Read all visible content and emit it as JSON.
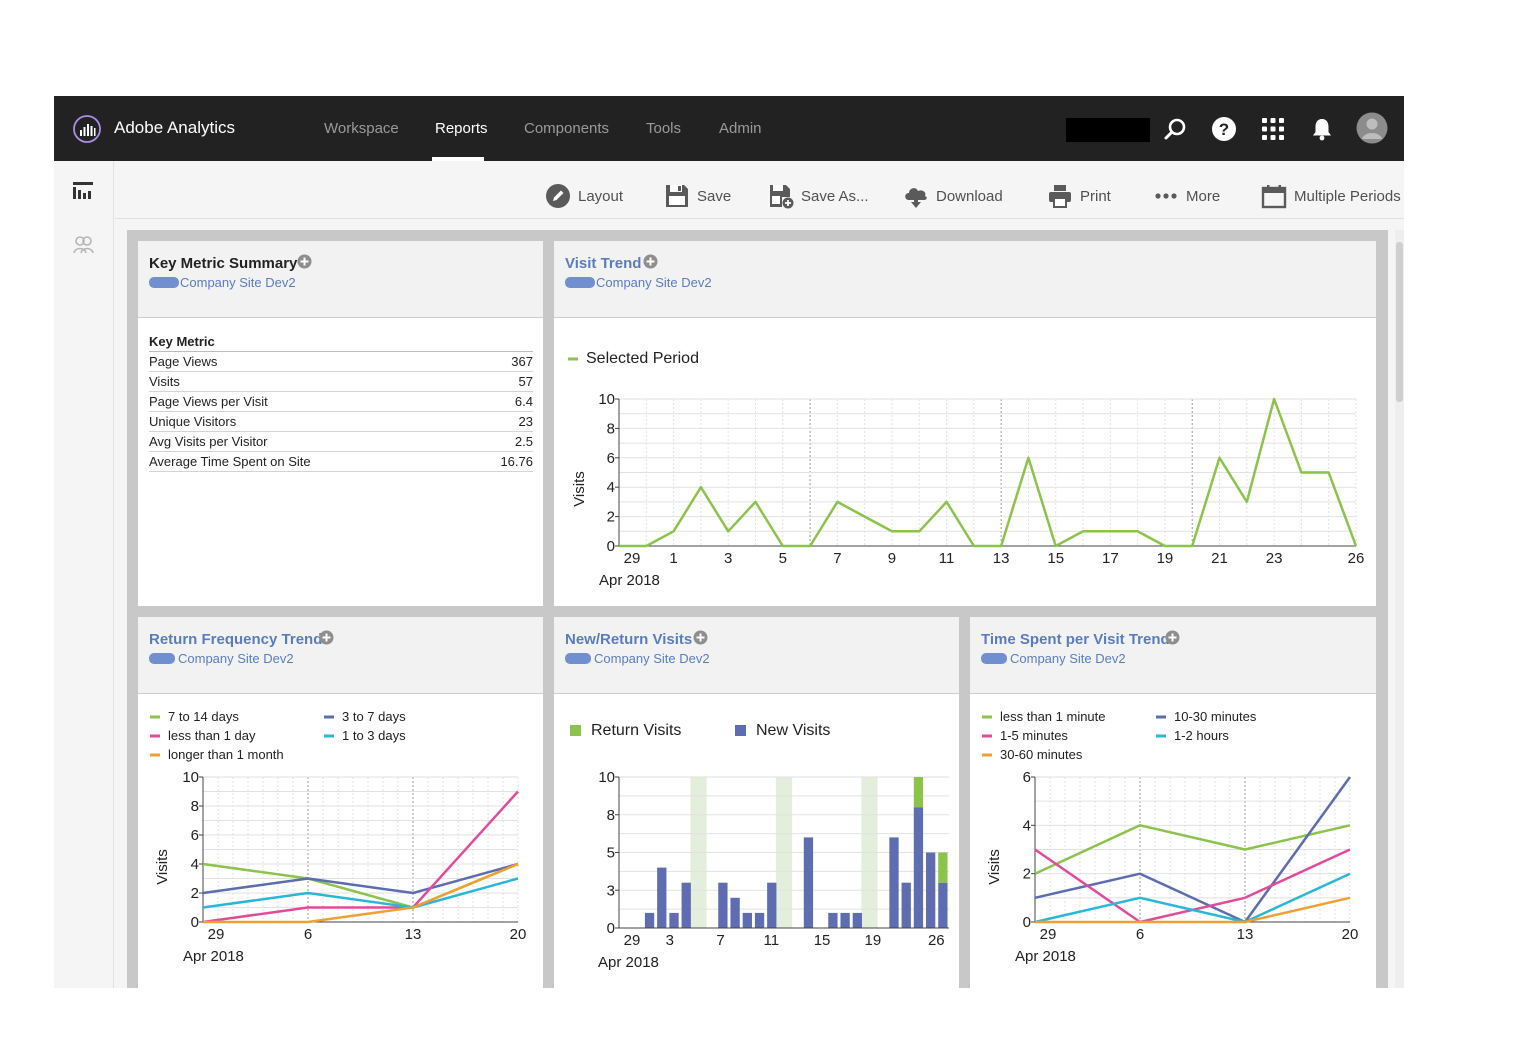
{
  "app": {
    "brand": "Adobe Analytics",
    "nav": [
      "Workspace",
      "Reports",
      "Components",
      "Tools",
      "Admin"
    ],
    "active_nav": "Reports",
    "top_icons": [
      "search-icon",
      "help-icon",
      "apps-grid-icon",
      "notifications-bell-icon",
      "user-avatar"
    ]
  },
  "toolbar": {
    "items": [
      {
        "label": "Layout",
        "icon": "pencil-icon"
      },
      {
        "label": "Save",
        "icon": "floppy-disk-icon"
      },
      {
        "label": "Save As...",
        "icon": "save-as-icon"
      },
      {
        "label": "Download",
        "icon": "cloud-download-icon"
      },
      {
        "label": "Print",
        "icon": "printer-icon"
      },
      {
        "label": "More",
        "icon": "more-dots-icon"
      },
      {
        "label": "Multiple Periods",
        "icon": "calendar-icon"
      }
    ]
  },
  "sidebar": {
    "icons": [
      "dashboard-icon",
      "users-icon"
    ]
  },
  "panels": {
    "key_metric": {
      "title": "Key Metric Summary",
      "subtitle": "Company Site Dev2",
      "table_header": "Key Metric",
      "rows": [
        {
          "metric": "Page Views",
          "value": "367"
        },
        {
          "metric": "Visits",
          "value": "57"
        },
        {
          "metric": "Page Views per Visit",
          "value": "6.4"
        },
        {
          "metric": "Unique Visitors",
          "value": "23"
        },
        {
          "metric": "Avg Visits per Visitor",
          "value": "2.5"
        },
        {
          "metric": "Average Time Spent on Site",
          "value": "16.76"
        }
      ]
    },
    "visit_trend": {
      "title": "Visit Trend",
      "subtitle": "Company Site Dev2"
    },
    "return_frequency": {
      "title": "Return Frequency Trend",
      "subtitle": "Company Site Dev2"
    },
    "new_return": {
      "title": "New/Return Visits",
      "subtitle": "Company Site Dev2"
    },
    "time_spent": {
      "title": "Time Spent per Visit Trend",
      "subtitle": "Company Site Dev2"
    }
  },
  "chart_data": [
    {
      "id": "visit_trend",
      "type": "line",
      "ylabel": "Visits",
      "xlabel": "",
      "ylim": [
        0,
        10
      ],
      "yticks": [
        "0",
        "2",
        "4",
        "6",
        "8",
        "10"
      ],
      "xtick_labels": [
        "29",
        "1",
        "3",
        "5",
        "7",
        "9",
        "11",
        "13",
        "15",
        "17",
        "19",
        "21",
        "23",
        "26"
      ],
      "date_label": "Apr 2018",
      "legend_position": "top-left",
      "grid": true,
      "series": [
        {
          "name": "Selected Period",
          "color": "#8cc34b",
          "values": [
            0,
            0,
            1,
            4,
            1,
            3,
            0,
            0,
            3,
            2,
            1,
            1,
            3,
            0,
            0,
            6,
            0,
            1,
            1,
            1,
            0,
            0,
            6,
            3,
            10,
            5,
            5,
            0
          ]
        }
      ]
    },
    {
      "id": "return_frequency",
      "type": "line",
      "ylabel": "Visits",
      "xlabel": "",
      "ylim": [
        0,
        10
      ],
      "yticks": [
        "0",
        "2",
        "4",
        "6",
        "8",
        "10"
      ],
      "xtick_labels": [
        "29",
        "6",
        "13",
        "20"
      ],
      "date_label": "Apr 2018",
      "legend_position": "top",
      "grid": true,
      "series": [
        {
          "name": "7 to 14 days",
          "color": "#8cc34b",
          "values": [
            4,
            3,
            1,
            4
          ]
        },
        {
          "name": "3 to 7 days",
          "color": "#5d6db0",
          "values": [
            2,
            3,
            2,
            4
          ]
        },
        {
          "name": "less than 1 day",
          "color": "#e24b9b",
          "values": [
            0,
            1,
            1,
            9
          ]
        },
        {
          "name": "1 to 3 days",
          "color": "#2ab7d6",
          "values": [
            1,
            2,
            1,
            3
          ]
        },
        {
          "name": "longer than 1 month",
          "color": "#f0a030",
          "values": [
            0,
            0,
            1,
            4
          ]
        }
      ]
    },
    {
      "id": "new_return",
      "type": "bar",
      "stacked": true,
      "ylabel": "",
      "xlabel": "",
      "ylim": [
        0,
        10
      ],
      "yticks": [
        "0",
        "3",
        "5",
        "8",
        "10"
      ],
      "xtick_labels": [
        "29",
        "3",
        "7",
        "11",
        "15",
        "19",
        "26"
      ],
      "date_label": "Apr 2018",
      "legend_position": "top",
      "grid": true,
      "series": [
        {
          "name": "New Visits",
          "color": "#5d6db0",
          "values": [
            0,
            0,
            1,
            4,
            1,
            3,
            0,
            0,
            3,
            2,
            1,
            1,
            3,
            0,
            0,
            6,
            0,
            1,
            1,
            1,
            0,
            0,
            6,
            3,
            8,
            5,
            3
          ]
        },
        {
          "name": "Return Visits",
          "color": "#8cc34b",
          "values": [
            0,
            0,
            0,
            0,
            0,
            0,
            0,
            0,
            0,
            0,
            0,
            0,
            0,
            0,
            0,
            0,
            0,
            0,
            0,
            0,
            0,
            0,
            0,
            0,
            2,
            0,
            2
          ]
        }
      ]
    },
    {
      "id": "time_spent",
      "type": "line",
      "ylabel": "Visits",
      "xlabel": "",
      "ylim": [
        0,
        6
      ],
      "yticks": [
        "0",
        "2",
        "4",
        "6"
      ],
      "xtick_labels": [
        "29",
        "6",
        "13",
        "20"
      ],
      "date_label": "Apr 2018",
      "legend_position": "top",
      "grid": true,
      "series": [
        {
          "name": "less than 1 minute",
          "color": "#8cc34b",
          "values": [
            2,
            4,
            3,
            4
          ]
        },
        {
          "name": "10-30 minutes",
          "color": "#5d6db0",
          "values": [
            1,
            2,
            0,
            6
          ]
        },
        {
          "name": "1-5 minutes",
          "color": "#e24b9b",
          "values": [
            3,
            0,
            1,
            3
          ]
        },
        {
          "name": "1-2 hours",
          "color": "#2ab7d6",
          "values": [
            0,
            1,
            0,
            2
          ]
        },
        {
          "name": "30-60 minutes",
          "color": "#f0a030",
          "values": [
            0,
            0,
            0,
            1
          ]
        }
      ]
    }
  ]
}
